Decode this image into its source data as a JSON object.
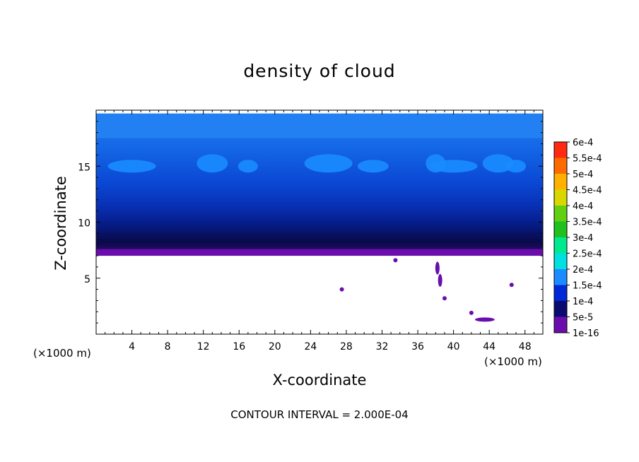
{
  "chart_data": {
    "type": "heatmap",
    "title": "density of cloud",
    "xlabel": "X-coordinate",
    "ylabel": "Z-coordinate",
    "x_unit": "(×1000 m)",
    "y_unit": "(×1000 m)",
    "xlim": [
      0,
      50
    ],
    "ylim": [
      0,
      20
    ],
    "x_ticks": [
      4,
      8,
      12,
      16,
      20,
      24,
      28,
      32,
      36,
      40,
      44,
      48
    ],
    "y_ticks": [
      5,
      10,
      15
    ],
    "footer": "CONTOUR INTERVAL = 2.000E-04",
    "colorbar": {
      "levels": [
        "1e-16",
        "5e-5",
        "1e-4",
        "1.5e-4",
        "2e-4",
        "2.5e-4",
        "3e-4",
        "3.5e-4",
        "4e-4",
        "4.5e-4",
        "5e-4",
        "5.5e-4",
        "6e-4"
      ],
      "colors": [
        "#6a0dad",
        "#0a0a70",
        "#0028d8",
        "#1a8cff",
        "#00e0e0",
        "#00e890",
        "#20c020",
        "#60d010",
        "#d8d800",
        "#ffb000",
        "#ff6a00",
        "#ff2a10",
        "#ff8c8c"
      ]
    },
    "layers": [
      {
        "z_bottom": 7.0,
        "z_top": 7.6,
        "level": "1e-16"
      },
      {
        "z_bottom": 7.6,
        "z_top": 8.6,
        "level": "1e-16"
      },
      {
        "z_bottom": 8.6,
        "z_top": 10.0,
        "level": "5e-5"
      },
      {
        "z_bottom": 10.0,
        "z_top": 12.5,
        "level": "1e-4"
      },
      {
        "z_bottom": 12.5,
        "z_top": 19.7,
        "level": "1e-4"
      }
    ],
    "patches_1.5e-4_x_centers": [
      4,
      13,
      17,
      26,
      31,
      38,
      40,
      45,
      47
    ],
    "patches_1.5e-4_z": 15
  }
}
